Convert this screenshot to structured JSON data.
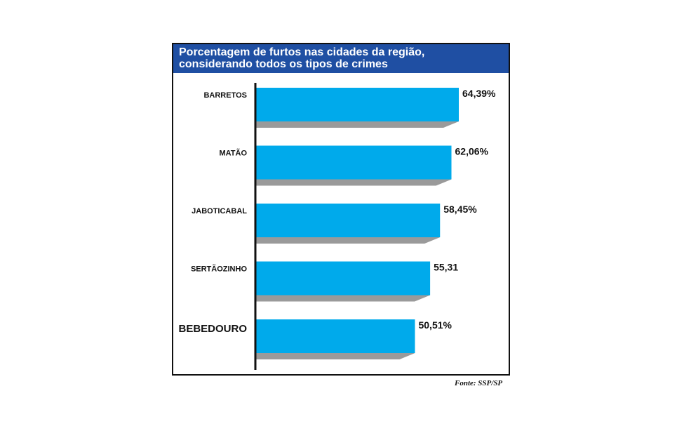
{
  "chart_data": {
    "type": "bar",
    "orientation": "horizontal",
    "title": "Porcentagem de furtos nas cidades da região,",
    "subtitle": "considerando todos os tipos de crimes",
    "categories": [
      "BARRETOS",
      "MATÃO",
      "JABOTICABAL",
      "SERTÃOZINHO",
      "BEBEDOURO"
    ],
    "values": [
      64.39,
      62.06,
      58.45,
      55.31,
      50.51
    ],
    "value_labels": [
      "64,39%",
      "62,06%",
      "58,45%",
      "55,31",
      "50,51%"
    ],
    "highlighted_category": "BEBEDOURO",
    "xlim": [
      0,
      65.5
    ],
    "grid": false,
    "colors": {
      "bar": "#00aaeb",
      "shadow": "#9a9a9a",
      "title_bg": "#1f4fa3"
    }
  },
  "source": "Fonte: SSP/SP"
}
